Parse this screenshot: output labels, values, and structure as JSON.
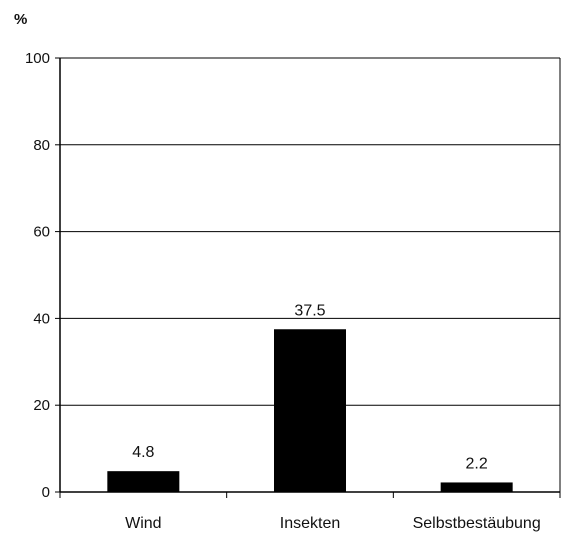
{
  "chart_data": {
    "type": "bar",
    "unit_label": "%",
    "categories": [
      "Wind",
      "Insekten",
      "Selbstbestäubung"
    ],
    "values": [
      4.8,
      37.5,
      2.2
    ],
    "data_labels": [
      "4.8",
      "37.5",
      "2.2"
    ],
    "ylim": [
      0,
      100
    ],
    "yticks": [
      0,
      20,
      40,
      60,
      80,
      100
    ],
    "grid": true,
    "legend": "none",
    "colors": {
      "bar": "#000000",
      "grid": "#000000",
      "axis": "#000000",
      "background": "#ffffff"
    }
  }
}
